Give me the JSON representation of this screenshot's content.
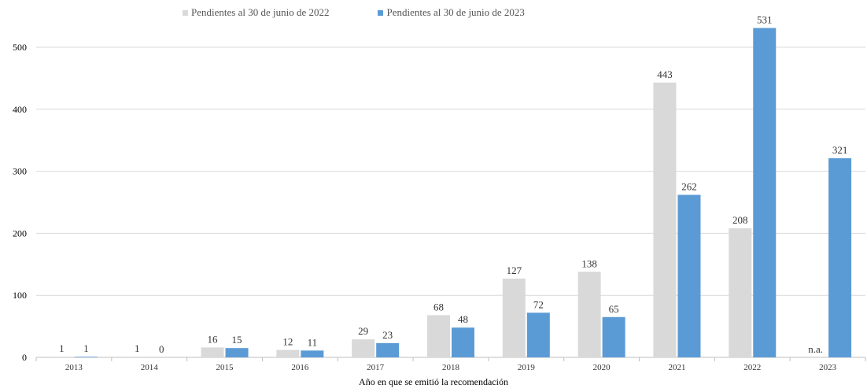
{
  "chart_data": {
    "type": "bar",
    "xlabel": "Año en que se emitió la recomendación",
    "ylabel": "",
    "ylim": [
      0,
      550
    ],
    "yticks": [
      0,
      100,
      200,
      300,
      400,
      500
    ],
    "grid": true,
    "legend_position": "top-center",
    "categories": [
      "2013",
      "2014",
      "2015",
      "2016",
      "2017",
      "2018",
      "2019",
      "2020",
      "2021",
      "2022",
      "2023"
    ],
    "series": [
      {
        "name": "Pendientes al 30 de junio de 2022",
        "color": "#d9d9d9",
        "values": [
          1,
          1,
          16,
          12,
          29,
          68,
          127,
          138,
          443,
          208,
          null
        ],
        "labels": [
          "1",
          "1",
          "16",
          "12",
          "29",
          "68",
          "127",
          "138",
          "443",
          "208",
          "n.a."
        ]
      },
      {
        "name": "Pendientes al 30 de junio de 2023",
        "color": "#5b9bd5",
        "values": [
          1,
          0,
          15,
          11,
          23,
          48,
          72,
          65,
          262,
          531,
          321
        ],
        "labels": [
          "1",
          "0",
          "15",
          "11",
          "23",
          "48",
          "72",
          "65",
          "262",
          "531",
          "321"
        ]
      }
    ]
  }
}
